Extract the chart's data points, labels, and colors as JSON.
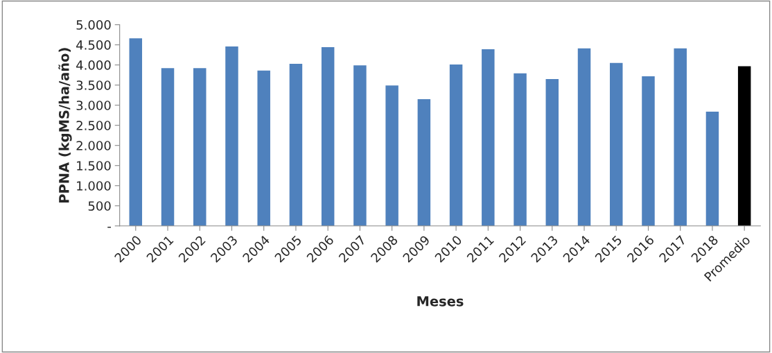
{
  "chart_data": {
    "type": "bar",
    "xlabel": "Meses",
    "ylabel": "PPNA (kgMS/ha/año)",
    "categories": [
      "2000",
      "2001",
      "2002",
      "2003",
      "2004",
      "2005",
      "2006",
      "2007",
      "2008",
      "2009",
      "2010",
      "2011",
      "2012",
      "2013",
      "2014",
      "2015",
      "2016",
      "2017",
      "2018",
      "Promedio"
    ],
    "values": [
      4660,
      3920,
      3920,
      4460,
      3860,
      4030,
      4440,
      3990,
      3490,
      3150,
      4010,
      4390,
      3790,
      3650,
      4410,
      4050,
      3720,
      4410,
      2840,
      3970
    ],
    "colors": [
      "#4f81bd",
      "#4f81bd",
      "#4f81bd",
      "#4f81bd",
      "#4f81bd",
      "#4f81bd",
      "#4f81bd",
      "#4f81bd",
      "#4f81bd",
      "#4f81bd",
      "#4f81bd",
      "#4f81bd",
      "#4f81bd",
      "#4f81bd",
      "#4f81bd",
      "#4f81bd",
      "#4f81bd",
      "#4f81bd",
      "#4f81bd",
      "#000000"
    ],
    "ylim": [
      0,
      5000
    ],
    "yticks": [
      {
        "value": 0,
        "label": "-"
      },
      500,
      {
        "value": 1000,
        "label": "1.000"
      },
      {
        "value": 1500,
        "label": "1.500"
      },
      {
        "value": 2000,
        "label": "2.000"
      },
      {
        "value": 2500,
        "label": "2.500"
      },
      {
        "value": 3000,
        "label": "3.000"
      },
      {
        "value": 3500,
        "label": "3.500"
      },
      {
        "value": 4000,
        "label": "4.000"
      },
      {
        "value": 4500,
        "label": "4.500"
      },
      {
        "value": 5000,
        "label": "5.000"
      }
    ],
    "grid": false,
    "legend": false
  }
}
